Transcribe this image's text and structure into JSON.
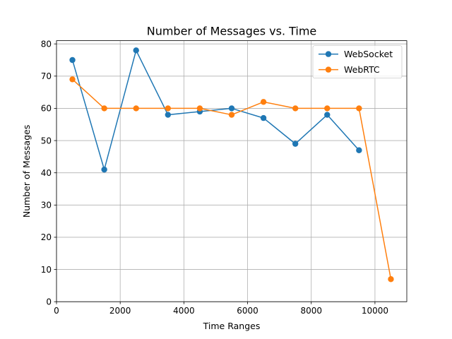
{
  "chart_data": {
    "type": "line",
    "title": "Number of Messages vs. Time",
    "xlabel": "Time Ranges",
    "ylabel": "Number of Messages",
    "xlim": [
      0,
      11000
    ],
    "ylim": [
      0,
      81
    ],
    "xticks": [
      0,
      2000,
      4000,
      6000,
      8000,
      10000
    ],
    "yticks": [
      0,
      10,
      20,
      30,
      40,
      50,
      60,
      70,
      80
    ],
    "grid": true,
    "legend_position": "top-right",
    "series": [
      {
        "name": "WebSocket",
        "color": "#1f77b4",
        "x": [
          500,
          1500,
          2500,
          3500,
          4500,
          5500,
          6500,
          7500,
          8500,
          9500
        ],
        "y": [
          75,
          41,
          78,
          58,
          59,
          60,
          57,
          49,
          58,
          47
        ]
      },
      {
        "name": "WebRTC",
        "color": "#ff7f0e",
        "x": [
          500,
          1500,
          2500,
          3500,
          4500,
          5500,
          6500,
          7500,
          8500,
          9500,
          10500
        ],
        "y": [
          69,
          60,
          60,
          60,
          60,
          58,
          62,
          60,
          60,
          60,
          7
        ]
      }
    ]
  }
}
